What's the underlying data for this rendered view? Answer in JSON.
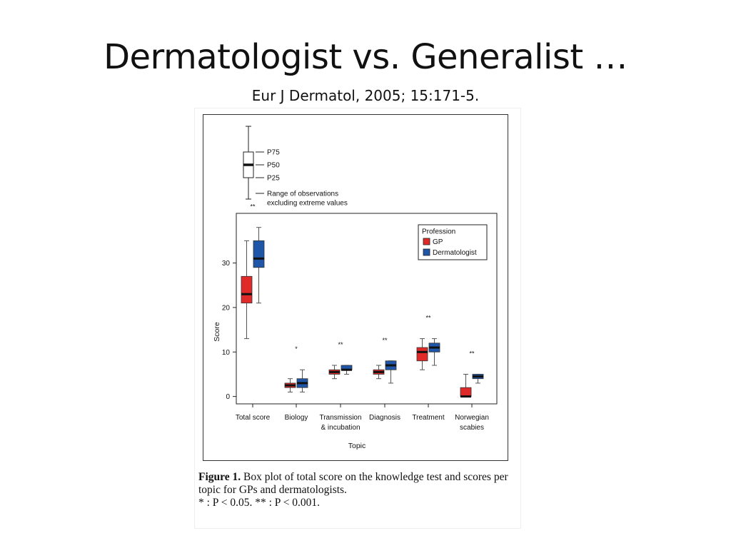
{
  "slide": {
    "title": "Dermatologist vs. Generalist …",
    "subtitle": "Eur J Dermatol, 2005; 15:171-5."
  },
  "key": {
    "p75": "P75",
    "p50": "P50",
    "p25": "P25",
    "range_line1": "Range of observations",
    "range_line2": "excluding extreme values"
  },
  "caption": {
    "label": "Figure 1.",
    "text": "Box plot of total score on the knowledge test and scores per topic for GPs and dermatologists.",
    "note": "* : P < 0.05. ** : P < 0.001."
  },
  "chart_data": {
    "type": "boxplot",
    "xlabel": "Topic",
    "ylabel": "Score",
    "ylim": [
      -1.5,
      41
    ],
    "yticks": [
      0,
      10,
      20,
      30
    ],
    "legend": {
      "title": "Profession",
      "placement": "top-right"
    },
    "categories": [
      {
        "label": [
          "Total score"
        ],
        "significance": "**"
      },
      {
        "label": [
          "Biology"
        ],
        "significance": "*"
      },
      {
        "label": [
          "Transmission",
          "& incubation"
        ],
        "significance": "**"
      },
      {
        "label": [
          "Diagnosis"
        ],
        "significance": "**"
      },
      {
        "label": [
          "Treatment"
        ],
        "significance": "**"
      },
      {
        "label": [
          "Norwegian",
          "scabies"
        ],
        "significance": "**"
      }
    ],
    "series": [
      {
        "name": "GP",
        "color": "#e02a2a",
        "boxes": [
          {
            "min": 13,
            "q1": 21,
            "median": 23,
            "q3": 27,
            "max": 35
          },
          {
            "min": 1,
            "q1": 2,
            "median": 2.5,
            "q3": 3,
            "max": 4
          },
          {
            "min": 4,
            "q1": 5,
            "median": 5.5,
            "q3": 6,
            "max": 7
          },
          {
            "min": 4,
            "q1": 5,
            "median": 5.5,
            "q3": 6,
            "max": 7
          },
          {
            "min": 6,
            "q1": 8,
            "median": 10,
            "q3": 11,
            "max": 13
          },
          {
            "min": 0,
            "q1": 0,
            "median": 0,
            "q3": 2,
            "max": 5
          }
        ]
      },
      {
        "name": "Dermatologist",
        "color": "#1f56a8",
        "boxes": [
          {
            "min": 21,
            "q1": 29,
            "median": 31,
            "q3": 35,
            "max": 38
          },
          {
            "min": 1,
            "q1": 2,
            "median": 3,
            "q3": 4,
            "max": 6
          },
          {
            "min": 5,
            "q1": 6,
            "median": 6,
            "q3": 7,
            "max": 7
          },
          {
            "min": 3,
            "q1": 6,
            "median": 7,
            "q3": 8,
            "max": 8
          },
          {
            "min": 7,
            "q1": 10,
            "median": 11,
            "q3": 12,
            "max": 13
          },
          {
            "min": 3,
            "q1": 4,
            "median": 4.5,
            "q3": 5,
            "max": 5
          }
        ]
      }
    ]
  }
}
